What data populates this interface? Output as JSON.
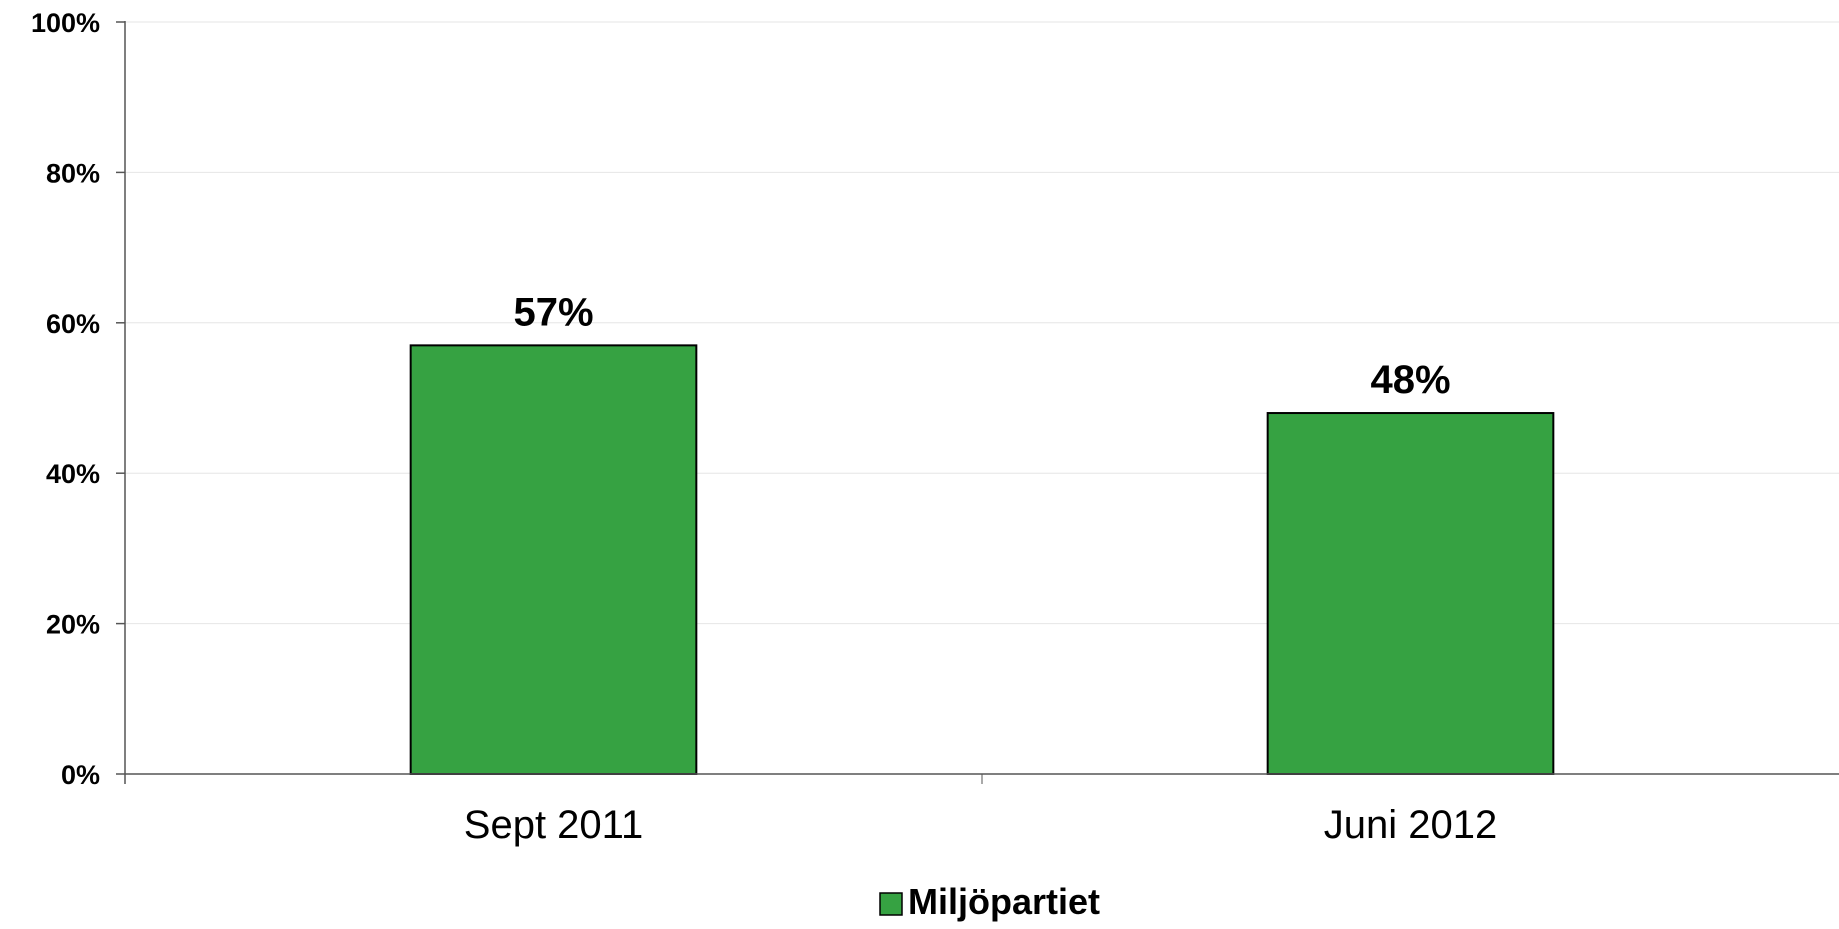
{
  "chart_data": {
    "type": "bar",
    "categories": [
      "Sept 2011",
      "Juni 2012"
    ],
    "series": [
      {
        "name": "Miljöpartiet",
        "values": [
          57,
          48
        ],
        "labels": [
          "57%",
          "48%"
        ],
        "color": "#36a242"
      }
    ],
    "ylim": [
      0,
      100
    ],
    "yticks": [
      {
        "value": 0,
        "label": "0%"
      },
      {
        "value": 20,
        "label": "20%"
      },
      {
        "value": 40,
        "label": "40%"
      },
      {
        "value": 60,
        "label": "60%"
      },
      {
        "value": 80,
        "label": "80%"
      },
      {
        "value": 100,
        "label": "100%"
      }
    ],
    "grid": true,
    "legend": "bottom-center",
    "title": "",
    "xlabel": "",
    "ylabel": ""
  },
  "colors": {
    "bar_fill": "#36a242",
    "bar_stroke": "#000000",
    "gridline": "#e6e6e6",
    "axis": "#555555"
  }
}
